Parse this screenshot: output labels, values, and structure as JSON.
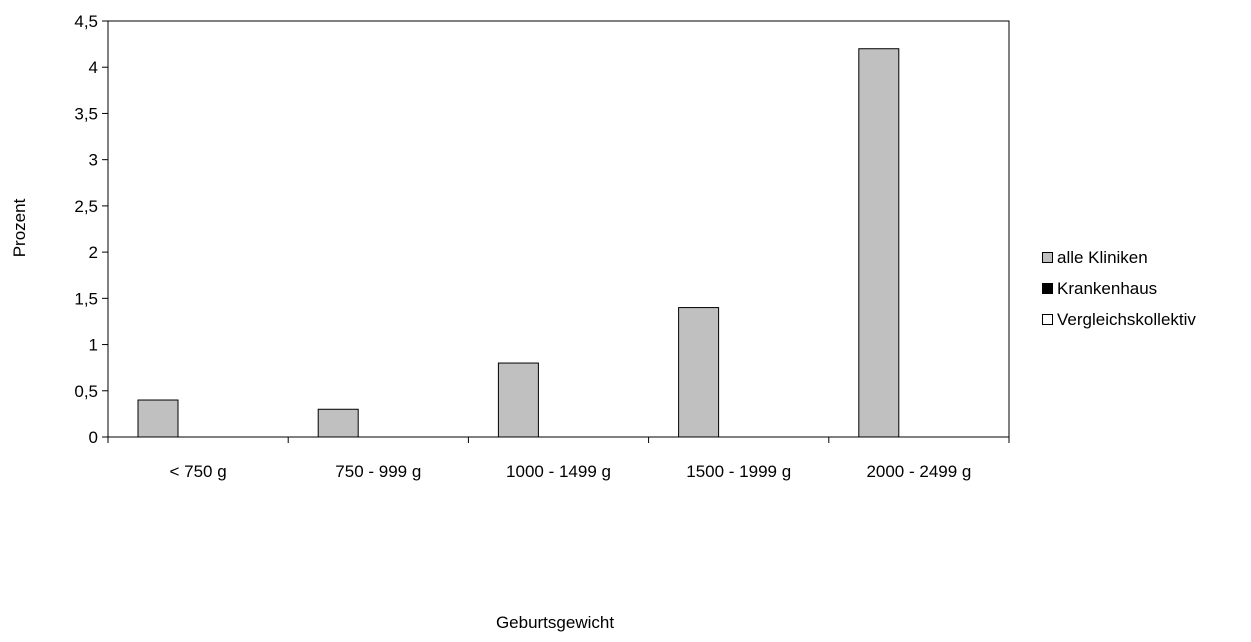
{
  "chart_data": {
    "type": "bar",
    "title": "",
    "xlabel": "Geburtsgewicht",
    "ylabel": "Prozent",
    "ylim": [
      0,
      4.5
    ],
    "yticks": [
      "0",
      "0,5",
      "1",
      "1,5",
      "2",
      "2,5",
      "3",
      "3,5",
      "4",
      "4,5"
    ],
    "categories": [
      "< 750 g",
      "750 - 999 g",
      "1000 - 1499 g",
      "1500 - 1999 g",
      "2000 - 2499 g"
    ],
    "series": [
      {
        "name": "alle Kliniken",
        "color": "#c0c0c0",
        "values": [
          0.4,
          0.3,
          0.8,
          1.4,
          4.2
        ]
      },
      {
        "name": "Krankenhaus",
        "color": "#000000",
        "values": [
          0,
          0,
          0,
          0,
          0
        ]
      },
      {
        "name": "Vergleichskollektiv",
        "color": "#ffffff",
        "values": [
          0,
          0,
          0,
          0,
          0
        ]
      }
    ],
    "grid": false,
    "legend_position": "right"
  }
}
